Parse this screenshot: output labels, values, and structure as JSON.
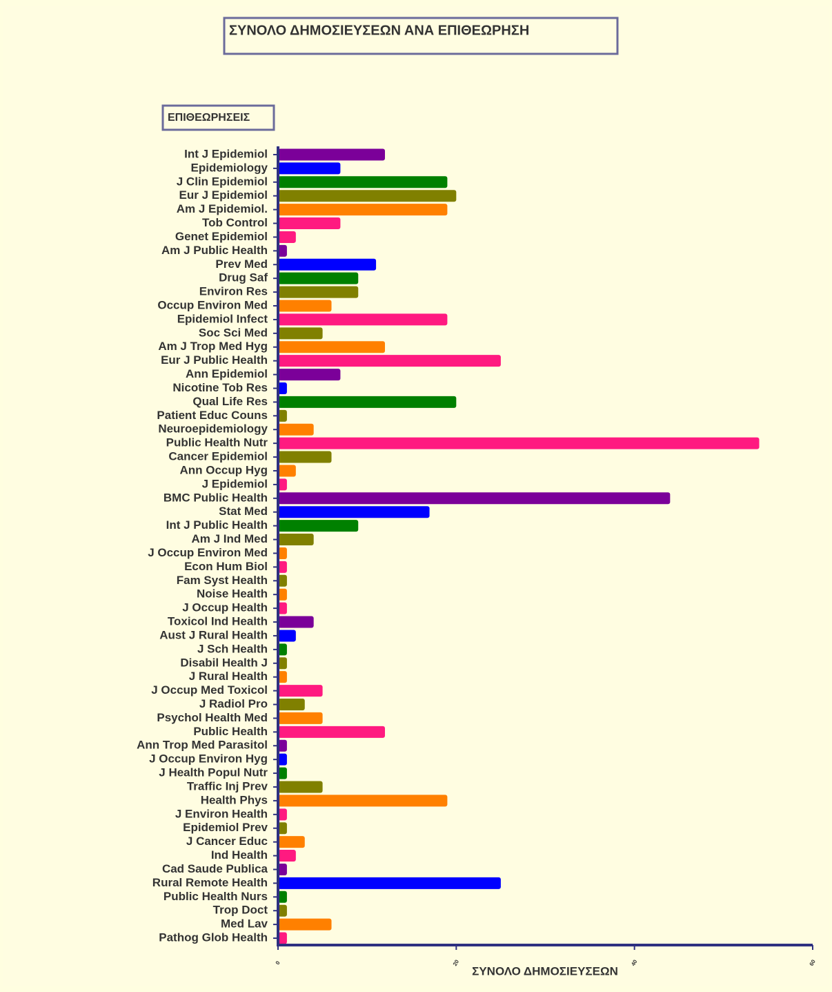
{
  "chart_data": {
    "type": "barh",
    "title": "ΣΥΝΟΛΟ ΔΗΜΟΣΙΕΥΣΕΩΝ ΑΝΑ ΕΠΙΘΕΩΡΗΣΗ",
    "y_label": "ΕΠΙΘΕΩΡΗΣΕΙΣ",
    "x_label": "ΣΥΝΟΛΟ ΔΗΜΟΣΙΕΥΣΕΩΝ",
    "categories": [
      "Int J Epidemiol",
      "Epidemiology",
      "J Clin Epidemiol",
      "Eur J Epidemiol",
      "Am J Epidemiol.",
      "Tob Control",
      "Genet Epidemiol",
      "Am J Public Health",
      "Prev Med",
      "Drug Saf",
      "Environ Res",
      "Occup Environ Med",
      "Epidemiol Infect",
      "Soc Sci Med",
      "Am J Trop Med Hyg",
      "Eur J Public Health",
      "Ann Epidemiol",
      "Nicotine Tob Res",
      "Qual Life Res",
      "Patient Educ Couns",
      "Neuroepidemiology",
      "Public Health Nutr",
      "Cancer Epidemiol",
      "Ann Occup Hyg",
      "J Epidemiol",
      "BMC Public Health",
      "Stat Med",
      "Int J Public Health",
      "Am J Ind Med",
      "J Occup Environ Med",
      "Econ Hum Biol",
      "Fam Syst Health",
      "Noise Health",
      "J Occup Health",
      "Toxicol Ind Health",
      "Aust J Rural Health",
      "J Sch Health",
      "Disabil Health J",
      "J Rural Health",
      "J Occup Med Toxicol",
      "J Radiol Pro",
      "Psychol Health Med",
      "Public Health",
      "Ann Trop Med Parasitol",
      "J Occup Environ Hyg",
      "J Health Popul Nutr",
      "Traffic Inj Prev",
      "Health Phys",
      "J Environ Health",
      "Epidemiol Prev",
      "J Cancer Educ",
      "Ind Health",
      "Cad Saude Publica",
      "Rural Remote Health",
      "Public Health Nurs",
      "Trop Doct",
      "Med Lav",
      "Pathog Glob Health"
    ],
    "values": [
      12,
      7,
      19,
      20,
      19,
      7,
      2,
      1,
      11,
      9,
      9,
      6,
      19,
      5,
      12,
      25,
      7,
      1,
      20,
      1,
      4,
      54,
      6,
      2,
      1,
      44,
      17,
      9,
      4,
      1,
      1,
      1,
      1,
      1,
      4,
      2,
      1,
      1,
      1,
      5,
      3,
      5,
      12,
      1,
      1,
      1,
      5,
      19,
      1,
      1,
      3,
      2,
      1,
      25,
      1,
      1,
      6,
      1
    ],
    "colors": [
      "#7b0099",
      "#0000ff",
      "#008000",
      "#808000",
      "#ff8000",
      "#ff1a80",
      "#ff1a80",
      "#7b0099",
      "#0000ff",
      "#008000",
      "#808000",
      "#ff8000",
      "#ff1a80",
      "#808000",
      "#ff8000",
      "#ff1a80",
      "#7b0099",
      "#0000ff",
      "#008000",
      "#808000",
      "#ff8000",
      "#ff1a80",
      "#808000",
      "#ff8000",
      "#ff1a80",
      "#7b0099",
      "#0000ff",
      "#008000",
      "#808000",
      "#ff8000",
      "#ff1a80",
      "#808000",
      "#ff8000",
      "#ff1a80",
      "#7b0099",
      "#0000ff",
      "#008000",
      "#808000",
      "#ff8000",
      "#ff1a80",
      "#808000",
      "#ff8000",
      "#ff1a80",
      "#7b0099",
      "#0000ff",
      "#008000",
      "#808000",
      "#ff8000",
      "#ff1a80",
      "#808000",
      "#ff8000",
      "#ff1a80",
      "#7b0099",
      "#0000ff",
      "#008000",
      "#808000",
      "#ff8000",
      "#ff1a80"
    ],
    "xlim": [
      0,
      60
    ],
    "xticks": [
      0,
      20,
      40,
      60
    ]
  }
}
